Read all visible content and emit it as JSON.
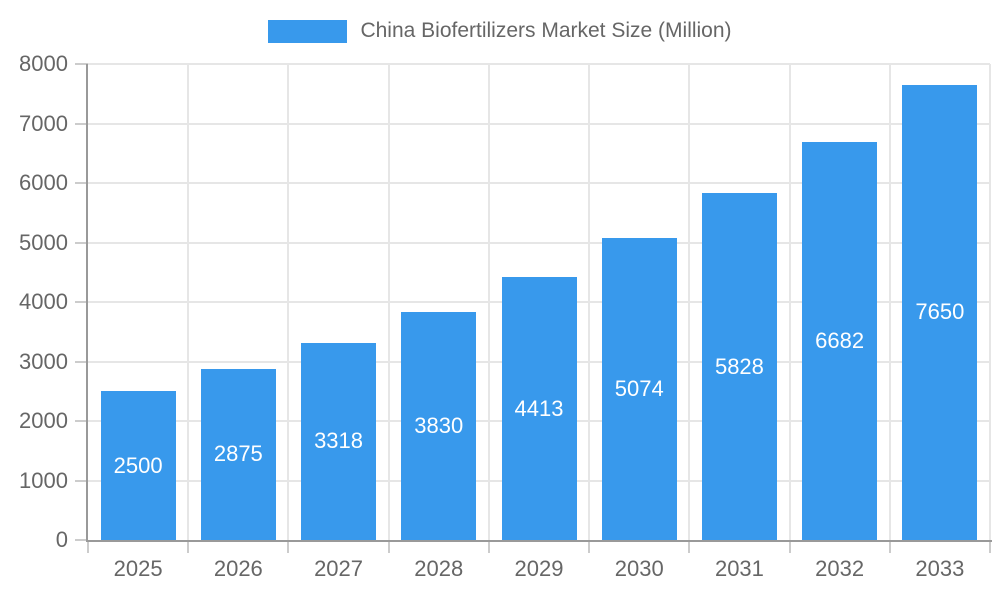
{
  "legend": {
    "label": "China Biofertilizers Market Size (Million)"
  },
  "chart_data": {
    "type": "bar",
    "title": "China Biofertilizers Market Size (Million)",
    "series_name": "China Biofertilizers Market Size (Million)",
    "categories": [
      "2025",
      "2026",
      "2027",
      "2028",
      "2029",
      "2030",
      "2031",
      "2032",
      "2033"
    ],
    "values": [
      2500,
      2875,
      3318,
      3830,
      4413,
      5074,
      5828,
      6682,
      7650
    ],
    "xlabel": "",
    "ylabel": "",
    "ylim": [
      0,
      8000
    ],
    "ytick_step": 1000,
    "yticks": [
      0,
      1000,
      2000,
      3000,
      4000,
      5000,
      6000,
      7000,
      8000
    ],
    "grid": true,
    "legend_position": "top",
    "bar_labels_inside": true,
    "colors": {
      "bar": "#3899EC",
      "bar_label": "#FFFFFF",
      "axis_line": "#999999",
      "grid_line": "#E6E6E6",
      "tick_mark": "#CCCCCC",
      "tick_text": "#666666",
      "background": "#FFFFFF"
    }
  }
}
